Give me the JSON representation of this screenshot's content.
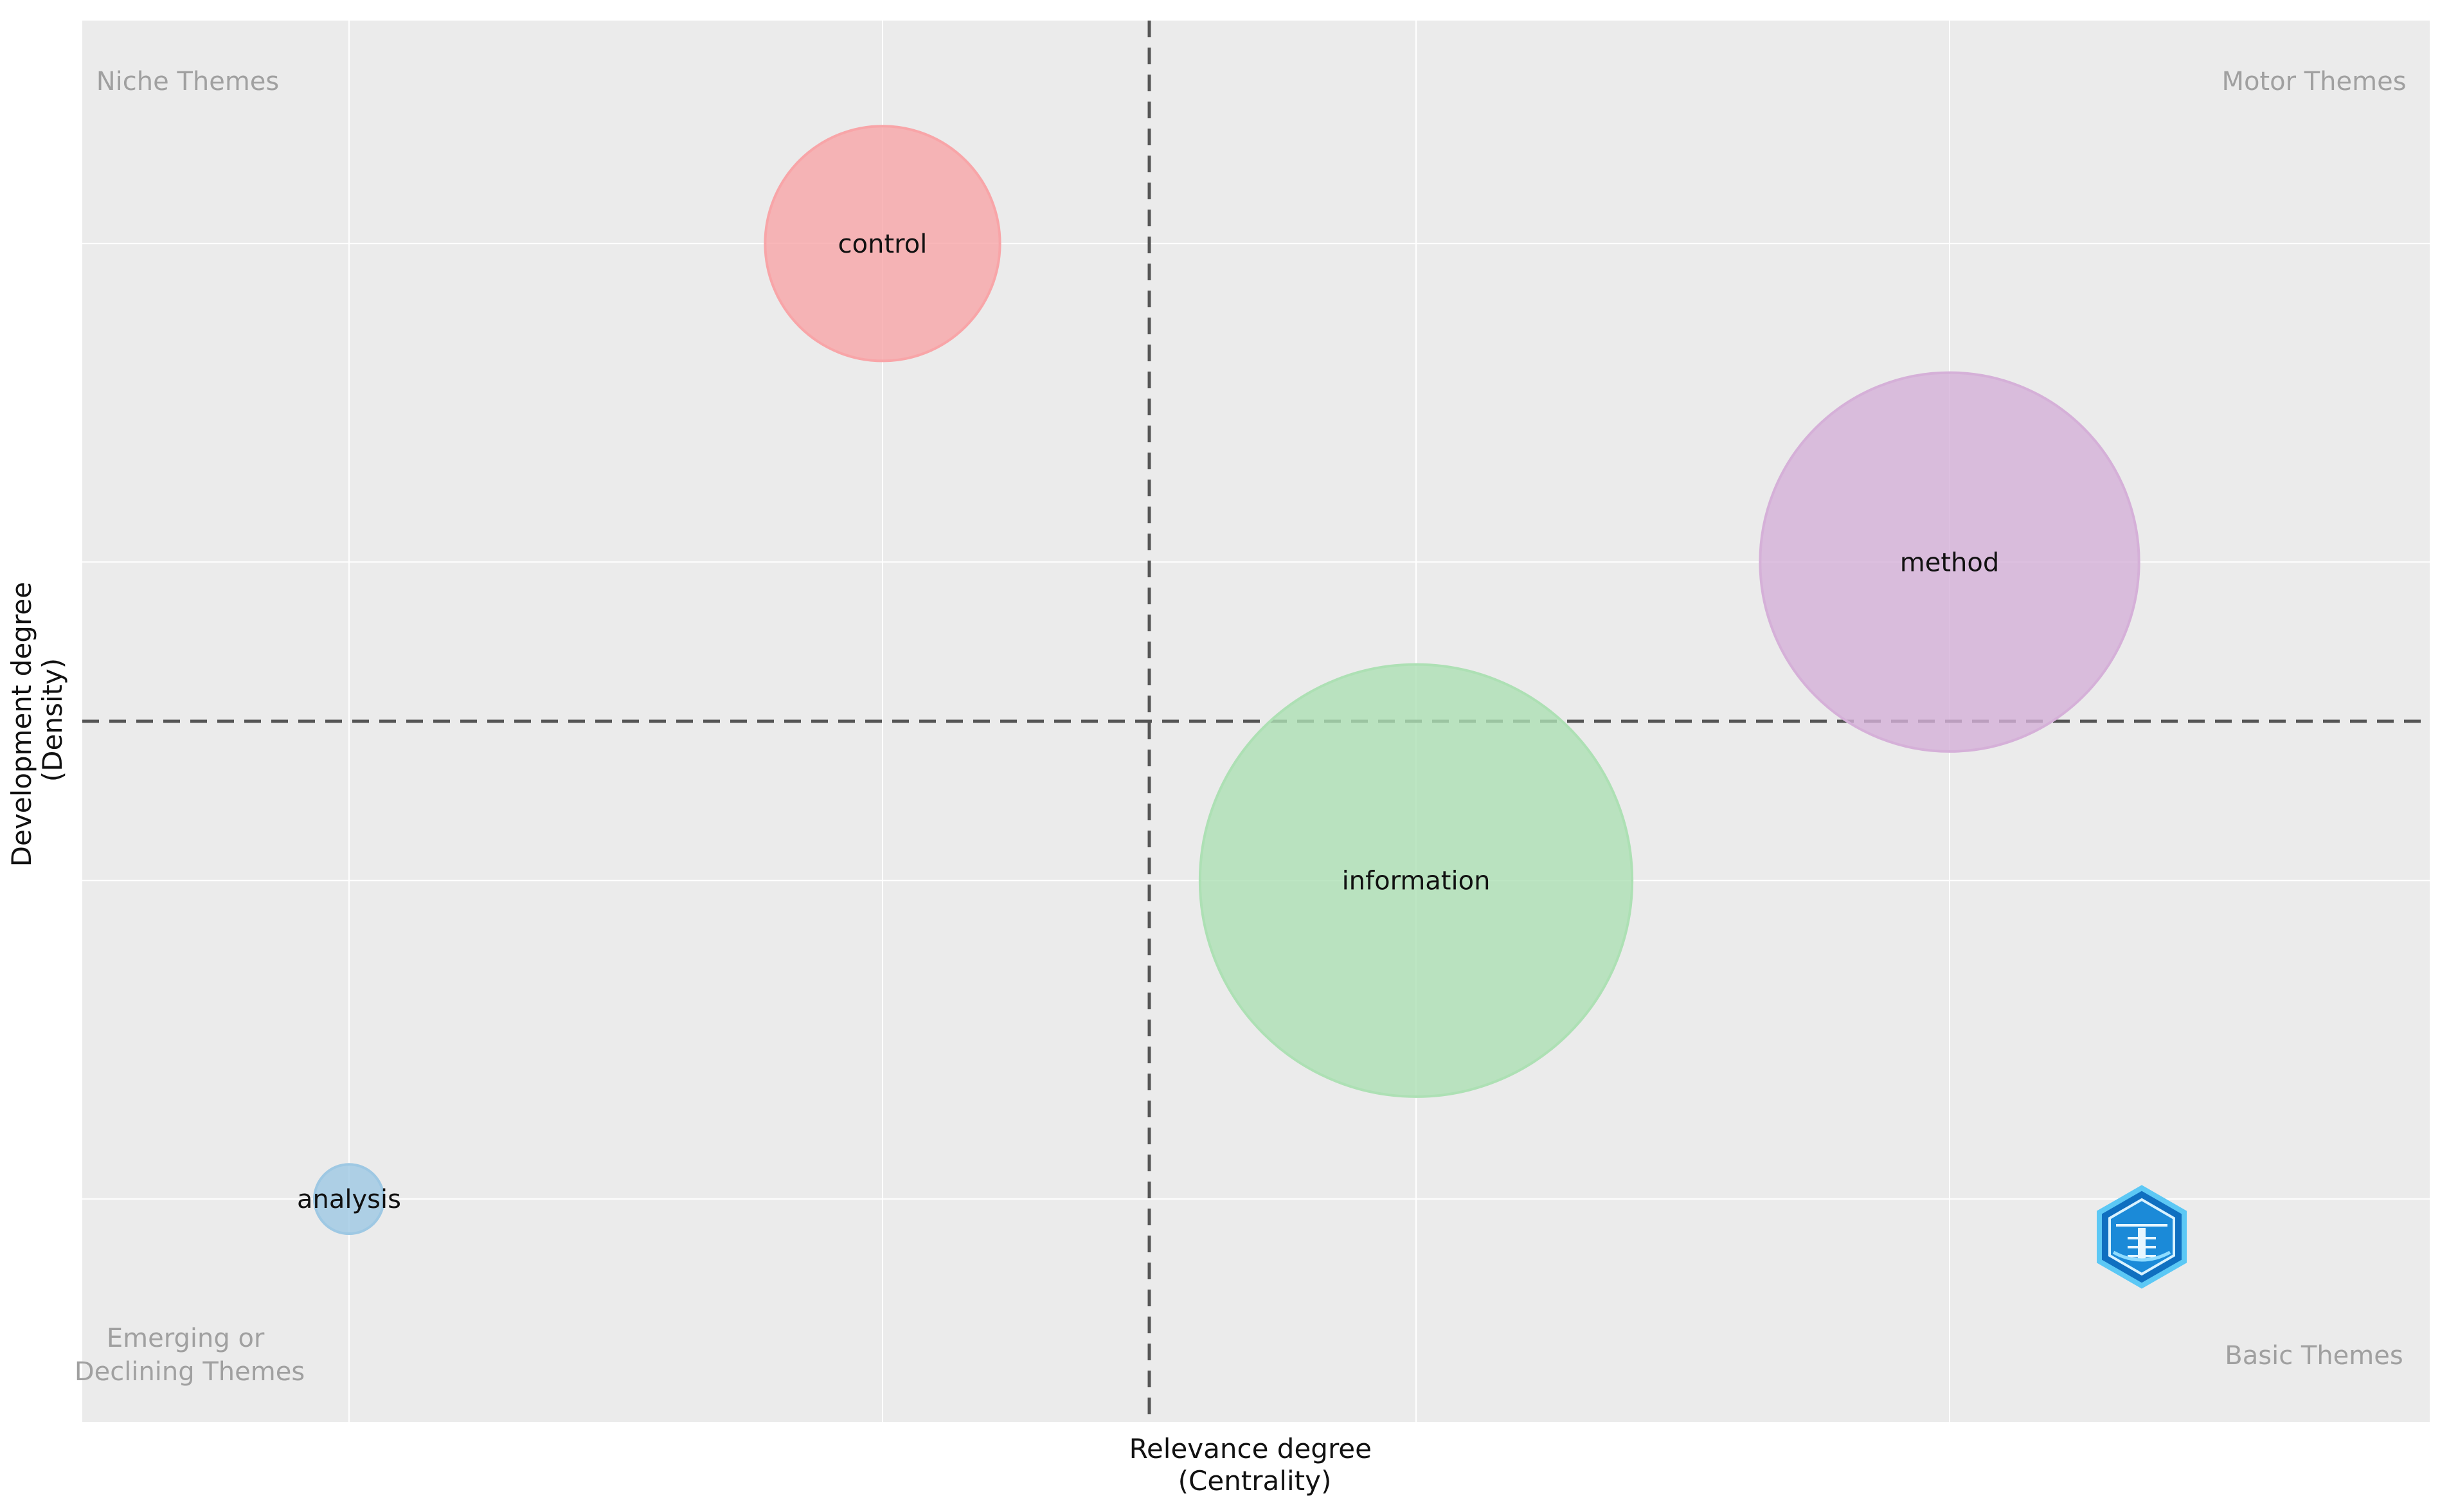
{
  "chart_data": {
    "type": "scatter",
    "title": "",
    "xlabel": [
      "Relevance degree",
      "(Centrality)"
    ],
    "ylabel": [
      "Development degree",
      "(Density)"
    ],
    "xlim": [
      -0.5,
      3.9
    ],
    "ylim": [
      -0.7,
      3.7
    ],
    "grid": true,
    "gridlines_x": [
      0,
      1,
      2,
      3
    ],
    "gridlines_y": [
      0,
      1,
      2,
      3
    ],
    "reference_lines": {
      "x": 1.5,
      "y": 1.5,
      "style": "dashed"
    },
    "quadrant_labels": {
      "top_left": [
        "Niche Themes"
      ],
      "top_right": [
        "Motor Themes"
      ],
      "bottom_left": [
        "Emerging or",
        "Declining Themes"
      ],
      "bottom_right": [
        "Basic Themes"
      ]
    },
    "points": [
      {
        "label": "control",
        "x": 1,
        "y": 3,
        "size": 0.44,
        "color": "#f8a5a8"
      },
      {
        "label": "method",
        "x": 3,
        "y": 2,
        "size": 0.71,
        "color": "#d5b0d8"
      },
      {
        "label": "information",
        "x": 2,
        "y": 1,
        "size": 0.81,
        "color": "#ade0b4"
      },
      {
        "label": "analysis",
        "x": 0,
        "y": 0,
        "size": 0.13,
        "color": "#9ec8e3"
      }
    ]
  },
  "colors": {
    "panel_bg": "#ebebeb",
    "grid": "#ffffff",
    "ref_line": "#555555",
    "logo_blue": "#1b8ad8"
  },
  "logo_icon": "bibliometrix-hexagon-logo"
}
